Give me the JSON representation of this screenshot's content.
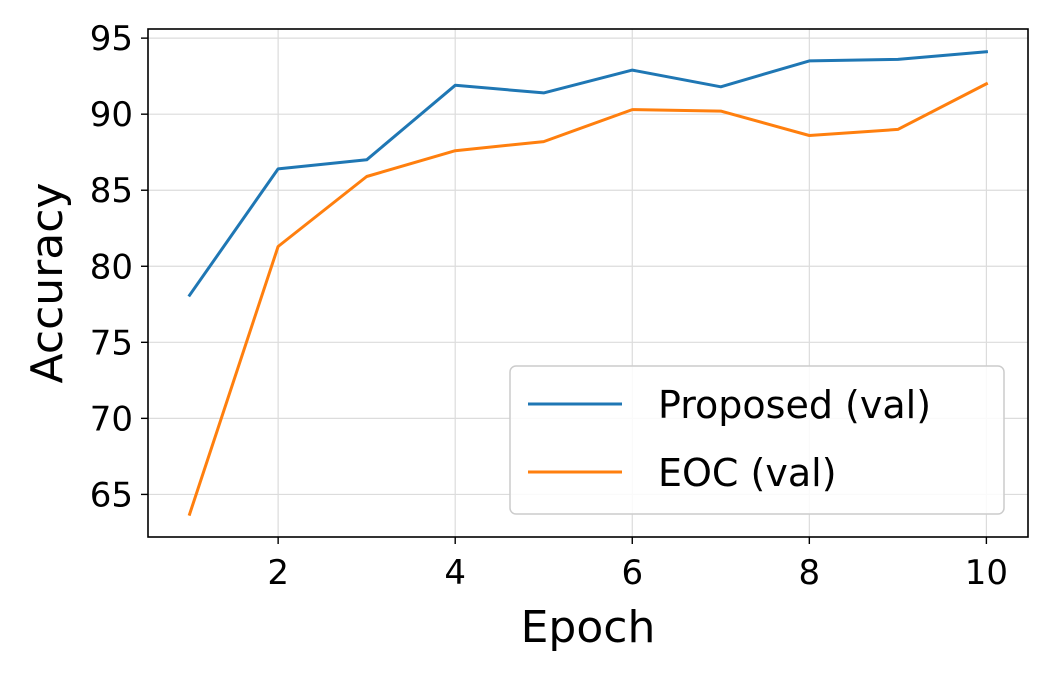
{
  "chart_data": {
    "type": "line",
    "title": "",
    "xlabel": "Epoch",
    "ylabel": "Accuracy",
    "x": [
      1,
      2,
      3,
      4,
      5,
      6,
      7,
      8,
      9,
      10
    ],
    "xlim": [
      0.53,
      10.47
    ],
    "ylim": [
      62.2,
      95.6
    ],
    "xticks": [
      2,
      4,
      6,
      8,
      10
    ],
    "yticks": [
      65,
      70,
      75,
      80,
      85,
      90,
      95
    ],
    "grid": true,
    "legend_position": "bottom-right",
    "series": [
      {
        "name": "Proposed (val)",
        "color": "#1f77b4",
        "values": [
          78.1,
          86.4,
          87.0,
          91.9,
          91.4,
          92.9,
          91.8,
          93.5,
          93.6,
          94.1
        ]
      },
      {
        "name": "EOC (val)",
        "color": "#ff7f0e",
        "values": [
          63.7,
          81.3,
          85.9,
          87.6,
          88.2,
          90.3,
          90.2,
          88.6,
          89.0,
          92.0
        ]
      }
    ]
  }
}
